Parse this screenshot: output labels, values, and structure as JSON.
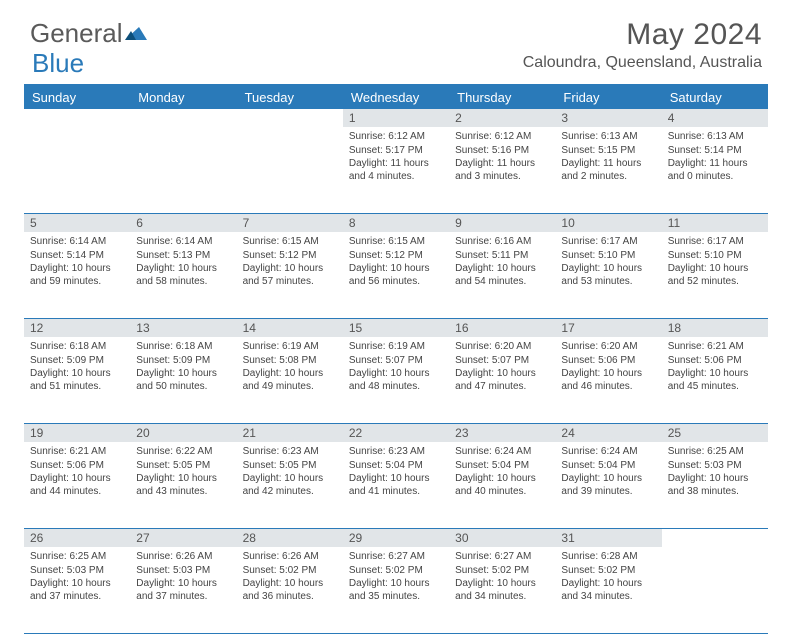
{
  "brand": {
    "part1": "General",
    "part2": "Blue"
  },
  "title": "May 2024",
  "location": "Caloundra, Queensland, Australia",
  "colors": {
    "accent": "#2a7ab9",
    "header_text": "#555555",
    "cell_bg": "#e1e5e8",
    "body_text": "#444444"
  },
  "dow": [
    "Sunday",
    "Monday",
    "Tuesday",
    "Wednesday",
    "Thursday",
    "Friday",
    "Saturday"
  ],
  "weeks": [
    [
      null,
      null,
      null,
      {
        "n": "1",
        "sr": "6:12 AM",
        "ss": "5:17 PM",
        "dl": "11 hours and 4 minutes."
      },
      {
        "n": "2",
        "sr": "6:12 AM",
        "ss": "5:16 PM",
        "dl": "11 hours and 3 minutes."
      },
      {
        "n": "3",
        "sr": "6:13 AM",
        "ss": "5:15 PM",
        "dl": "11 hours and 2 minutes."
      },
      {
        "n": "4",
        "sr": "6:13 AM",
        "ss": "5:14 PM",
        "dl": "11 hours and 0 minutes."
      }
    ],
    [
      {
        "n": "5",
        "sr": "6:14 AM",
        "ss": "5:14 PM",
        "dl": "10 hours and 59 minutes."
      },
      {
        "n": "6",
        "sr": "6:14 AM",
        "ss": "5:13 PM",
        "dl": "10 hours and 58 minutes."
      },
      {
        "n": "7",
        "sr": "6:15 AM",
        "ss": "5:12 PM",
        "dl": "10 hours and 57 minutes."
      },
      {
        "n": "8",
        "sr": "6:15 AM",
        "ss": "5:12 PM",
        "dl": "10 hours and 56 minutes."
      },
      {
        "n": "9",
        "sr": "6:16 AM",
        "ss": "5:11 PM",
        "dl": "10 hours and 54 minutes."
      },
      {
        "n": "10",
        "sr": "6:17 AM",
        "ss": "5:10 PM",
        "dl": "10 hours and 53 minutes."
      },
      {
        "n": "11",
        "sr": "6:17 AM",
        "ss": "5:10 PM",
        "dl": "10 hours and 52 minutes."
      }
    ],
    [
      {
        "n": "12",
        "sr": "6:18 AM",
        "ss": "5:09 PM",
        "dl": "10 hours and 51 minutes."
      },
      {
        "n": "13",
        "sr": "6:18 AM",
        "ss": "5:09 PM",
        "dl": "10 hours and 50 minutes."
      },
      {
        "n": "14",
        "sr": "6:19 AM",
        "ss": "5:08 PM",
        "dl": "10 hours and 49 minutes."
      },
      {
        "n": "15",
        "sr": "6:19 AM",
        "ss": "5:07 PM",
        "dl": "10 hours and 48 minutes."
      },
      {
        "n": "16",
        "sr": "6:20 AM",
        "ss": "5:07 PM",
        "dl": "10 hours and 47 minutes."
      },
      {
        "n": "17",
        "sr": "6:20 AM",
        "ss": "5:06 PM",
        "dl": "10 hours and 46 minutes."
      },
      {
        "n": "18",
        "sr": "6:21 AM",
        "ss": "5:06 PM",
        "dl": "10 hours and 45 minutes."
      }
    ],
    [
      {
        "n": "19",
        "sr": "6:21 AM",
        "ss": "5:06 PM",
        "dl": "10 hours and 44 minutes."
      },
      {
        "n": "20",
        "sr": "6:22 AM",
        "ss": "5:05 PM",
        "dl": "10 hours and 43 minutes."
      },
      {
        "n": "21",
        "sr": "6:23 AM",
        "ss": "5:05 PM",
        "dl": "10 hours and 42 minutes."
      },
      {
        "n": "22",
        "sr": "6:23 AM",
        "ss": "5:04 PM",
        "dl": "10 hours and 41 minutes."
      },
      {
        "n": "23",
        "sr": "6:24 AM",
        "ss": "5:04 PM",
        "dl": "10 hours and 40 minutes."
      },
      {
        "n": "24",
        "sr": "6:24 AM",
        "ss": "5:04 PM",
        "dl": "10 hours and 39 minutes."
      },
      {
        "n": "25",
        "sr": "6:25 AM",
        "ss": "5:03 PM",
        "dl": "10 hours and 38 minutes."
      }
    ],
    [
      {
        "n": "26",
        "sr": "6:25 AM",
        "ss": "5:03 PM",
        "dl": "10 hours and 37 minutes."
      },
      {
        "n": "27",
        "sr": "6:26 AM",
        "ss": "5:03 PM",
        "dl": "10 hours and 37 minutes."
      },
      {
        "n": "28",
        "sr": "6:26 AM",
        "ss": "5:02 PM",
        "dl": "10 hours and 36 minutes."
      },
      {
        "n": "29",
        "sr": "6:27 AM",
        "ss": "5:02 PM",
        "dl": "10 hours and 35 minutes."
      },
      {
        "n": "30",
        "sr": "6:27 AM",
        "ss": "5:02 PM",
        "dl": "10 hours and 34 minutes."
      },
      {
        "n": "31",
        "sr": "6:28 AM",
        "ss": "5:02 PM",
        "dl": "10 hours and 34 minutes."
      },
      null
    ]
  ],
  "labels": {
    "sunrise": "Sunrise: ",
    "sunset": "Sunset: ",
    "daylight": "Daylight: "
  }
}
